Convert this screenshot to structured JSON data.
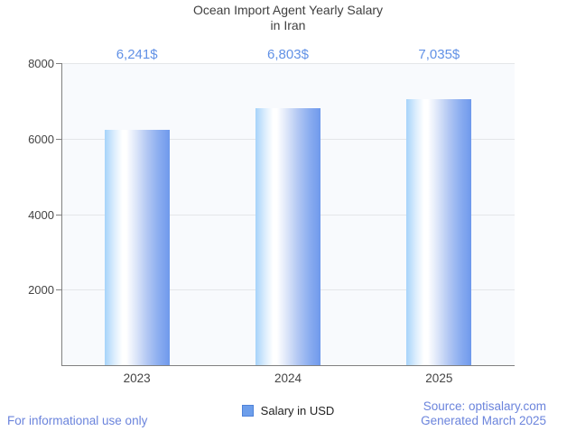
{
  "title": {
    "line1": "Ocean Import Agent Yearly Salary",
    "line2": "in Iran"
  },
  "chart_data": {
    "type": "bar",
    "categories": [
      "2023",
      "2024",
      "2025"
    ],
    "series": [
      {
        "name": "Salary in USD",
        "values": [
          6241,
          6803,
          7035
        ]
      }
    ],
    "annotations": [
      "6,241$",
      "6,803$",
      "7,035$"
    ],
    "title": "Ocean Import Agent Yearly Salary in Iran",
    "xlabel": "",
    "ylabel": "",
    "ylim": [
      0,
      8000
    ],
    "yticks": [
      2000,
      4000,
      6000,
      8000
    ],
    "grid": true,
    "legend_position": "bottom"
  },
  "legend": {
    "label": "Salary in USD"
  },
  "footer": {
    "left": "For informational use only",
    "source": "Source: optisalary.com",
    "generated": "Generated March 2025"
  },
  "colors": {
    "bar_gradient_left": "#a6d3fa",
    "bar_gradient_mid": "#ffffff",
    "bar_gradient_right": "#6f99ec",
    "annotation_text": "#6191e6",
    "footer_text": "#6b84dc",
    "axis_line": "#808080",
    "gridline": "#e4e6e9",
    "plot_background": "#f8fafd",
    "legend_marker_fill": "#6d9eeb",
    "legend_marker_border": "#4f83d9",
    "title_text": "#3f3f3f",
    "axis_label_text": "#444444"
  }
}
